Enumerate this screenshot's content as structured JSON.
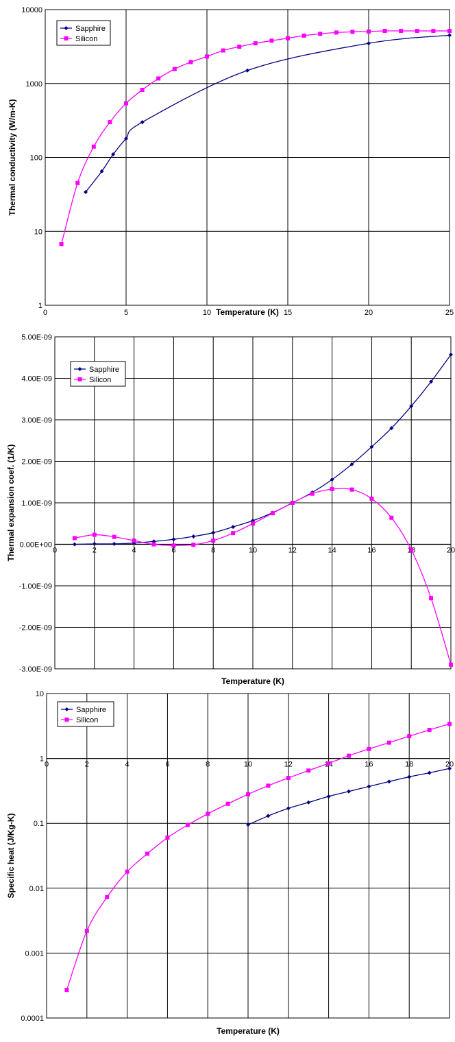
{
  "chart_data": [
    {
      "type": "line",
      "xlabel": "Temperature (K)",
      "ylabel": "Thermal conductivity (W/m-K)",
      "xlim": [
        0,
        25
      ],
      "ylim": [
        1,
        10000
      ],
      "yscale": "log",
      "grid": true,
      "legend": "top-left",
      "x_ticks": [
        "0",
        "5",
        "10",
        "15",
        "20",
        "25"
      ],
      "y_ticks": [
        "1",
        "10",
        "100",
        "1000",
        "10000"
      ],
      "series": [
        {
          "name": "Sapphire",
          "color": "#000080",
          "marker": "diamond",
          "points": [
            [
              2.5,
              34
            ],
            [
              3.5,
              65
            ],
            [
              4.2,
              110
            ],
            [
              5,
              180
            ],
            [
              6,
              300
            ],
            [
              12.5,
              1500
            ],
            [
              20,
              3500
            ],
            [
              25,
              4500
            ]
          ]
        },
        {
          "name": "Silicon",
          "color": "#ff00ff",
          "marker": "square",
          "points": [
            [
              1,
              6.7
            ],
            [
              2,
              45
            ],
            [
              3,
              140
            ],
            [
              4,
              300
            ],
            [
              5,
              540
            ],
            [
              6,
              820
            ],
            [
              7,
              1170
            ],
            [
              8,
              1570
            ],
            [
              9,
              1950
            ],
            [
              10,
              2320
            ],
            [
              11,
              2800
            ],
            [
              12,
              3150
            ],
            [
              13,
              3500
            ],
            [
              14,
              3800
            ],
            [
              15,
              4100
            ],
            [
              16,
              4450
            ],
            [
              17,
              4700
            ],
            [
              18,
              4900
            ],
            [
              19,
              5000
            ],
            [
              20,
              5050
            ],
            [
              21,
              5150
            ],
            [
              22,
              5150
            ],
            [
              23,
              5150
            ],
            [
              24,
              5150
            ],
            [
              25,
              5150
            ]
          ]
        }
      ]
    },
    {
      "type": "line",
      "xlabel": "Temperature (K)",
      "ylabel": "Thermal expansion coef. (1/K)",
      "xlim": [
        0,
        20
      ],
      "ylim": [
        -3e-09,
        5e-09
      ],
      "grid": true,
      "legend": "top-left",
      "x_ticks": [
        "0",
        "2",
        "4",
        "6",
        "8",
        "10",
        "12",
        "14",
        "16",
        "18",
        "20"
      ],
      "y_ticks": [
        "5.00E-09",
        "4.00E-09",
        "3.00E-09",
        "2.00E-09",
        "1.00E-09",
        "0.00E+00",
        "-1.00E-09",
        "-2.00E-09",
        "-3.00E-09"
      ],
      "series": [
        {
          "name": "Sapphire",
          "color": "#000080",
          "marker": "diamond",
          "points": [
            [
              1,
              0
            ],
            [
              2,
              1e-11
            ],
            [
              3,
              1e-11
            ],
            [
              4,
              3e-11
            ],
            [
              5,
              7e-11
            ],
            [
              6,
              1.2e-10
            ],
            [
              7,
              1.9e-10
            ],
            [
              8,
              2.8e-10
            ],
            [
              9,
              4.2e-10
            ],
            [
              10,
              5.7e-10
            ],
            [
              11,
              7.6e-10
            ],
            [
              12,
              1e-09
            ],
            [
              13,
              1.25e-09
            ],
            [
              14,
              1.56e-09
            ],
            [
              15,
              1.93e-09
            ],
            [
              16,
              2.35e-09
            ],
            [
              17,
              2.8e-09
            ],
            [
              18,
              3.33e-09
            ],
            [
              19,
              3.92e-09
            ],
            [
              20,
              4.57e-09
            ]
          ]
        },
        {
          "name": "Silicon",
          "color": "#ff00ff",
          "marker": "square",
          "points": [
            [
              1,
              1.5e-10
            ],
            [
              2,
              2.3e-10
            ],
            [
              3,
              1.8e-10
            ],
            [
              4,
              9e-11
            ],
            [
              5,
              0.0
            ],
            [
              6,
              -3e-11
            ],
            [
              7,
              -1e-11
            ],
            [
              8,
              9e-11
            ],
            [
              9,
              2.7e-10
            ],
            [
              10,
              5e-10
            ],
            [
              11,
              7.5e-10
            ],
            [
              12,
              1e-09
            ],
            [
              13,
              1.22e-09
            ],
            [
              14,
              1.33e-09
            ],
            [
              15,
              1.32e-09
            ],
            [
              16,
              1.1e-09
            ],
            [
              17,
              6.4e-10
            ],
            [
              18,
              -1.3e-10
            ],
            [
              19,
              -1.3e-09
            ],
            [
              20,
              -2.9e-09
            ]
          ]
        }
      ]
    },
    {
      "type": "line",
      "xlabel": "Temperature (K)",
      "ylabel": "Specific heat (J/Kg-K)",
      "xlim": [
        0,
        20
      ],
      "ylim": [
        0.0001,
        10
      ],
      "yscale": "log",
      "grid": true,
      "legend": "top-left",
      "x_ticks": [
        "0",
        "2",
        "4",
        "6",
        "8",
        "10",
        "12",
        "14",
        "16",
        "18",
        "20"
      ],
      "y_ticks": [
        "10",
        "1",
        "0.1",
        "0.01",
        "0.001",
        "0.0001"
      ],
      "series": [
        {
          "name": "Sapphire",
          "color": "#000080",
          "marker": "diamond",
          "points": [
            [
              10,
              0.095
            ],
            [
              11,
              0.13
            ],
            [
              12,
              0.17
            ],
            [
              13,
              0.21
            ],
            [
              14,
              0.26
            ],
            [
              15,
              0.31
            ],
            [
              16,
              0.37
            ],
            [
              17,
              0.44
            ],
            [
              18,
              0.52
            ],
            [
              19,
              0.6
            ],
            [
              20,
              0.7
            ]
          ]
        },
        {
          "name": "Silicon",
          "color": "#ff00ff",
          "marker": "square",
          "points": [
            [
              1,
              0.00027
            ],
            [
              2,
              0.0022
            ],
            [
              3,
              0.0073
            ],
            [
              4,
              0.018
            ],
            [
              5,
              0.034
            ],
            [
              6,
              0.06
            ],
            [
              7,
              0.094
            ],
            [
              8,
              0.14
            ],
            [
              9,
              0.2
            ],
            [
              10,
              0.28
            ],
            [
              11,
              0.38
            ],
            [
              12,
              0.5
            ],
            [
              13,
              0.65
            ],
            [
              14,
              0.84
            ],
            [
              15,
              1.1
            ],
            [
              16,
              1.4
            ],
            [
              17,
              1.75
            ],
            [
              18,
              2.2
            ],
            [
              19,
              2.75
            ],
            [
              20,
              3.4
            ]
          ]
        }
      ]
    }
  ]
}
